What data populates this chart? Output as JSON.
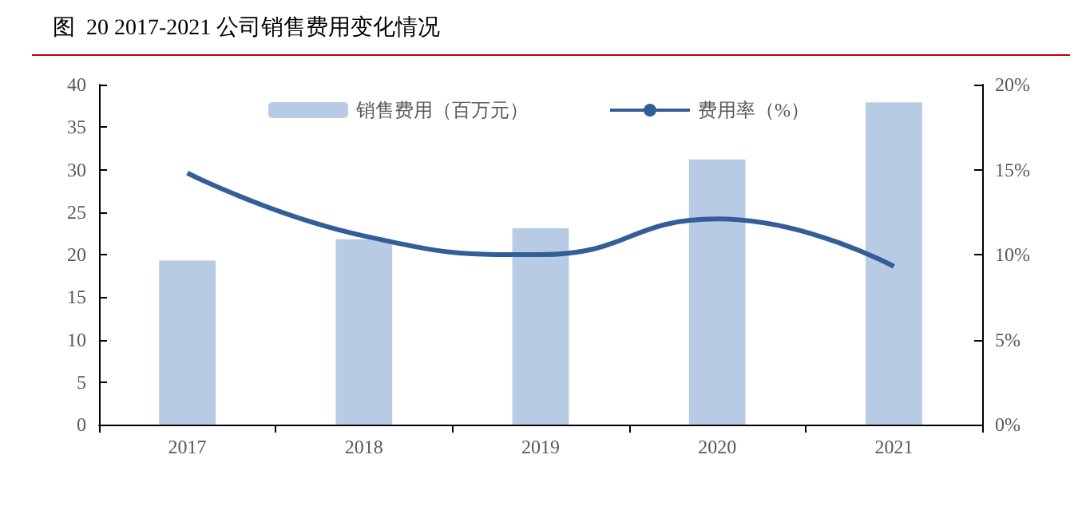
{
  "chart_data": {
    "type": "bar",
    "title": "图  20 2017-2021 公司销售费用变化情况",
    "categories": [
      "2017",
      "2018",
      "2019",
      "2020",
      "2021"
    ],
    "series": [
      {
        "name": "销售费用（百万元）",
        "color": "#b7cce4",
        "values": [
          19.3,
          21.8,
          23.1,
          31.2,
          37.9
        ]
      },
      {
        "name": "费用率（%）",
        "type": "line",
        "axis": "y2",
        "color": "#335e99",
        "values": [
          14.8,
          11.1,
          10.0,
          12.1,
          9.3
        ]
      }
    ],
    "ylim": [
      0,
      40
    ],
    "yticks": [
      0,
      5,
      10,
      15,
      20,
      25,
      30,
      35,
      40
    ],
    "y2lim": [
      0,
      20
    ],
    "y2ticks": [
      {
        "value": 0,
        "label": "0%"
      },
      {
        "value": 5,
        "label": "5%"
      },
      {
        "value": 10,
        "label": "10%"
      },
      {
        "value": 15,
        "label": "15%"
      },
      {
        "value": 20,
        "label": "20%"
      }
    ],
    "legend": "top",
    "grid": false,
    "marker": "none"
  }
}
